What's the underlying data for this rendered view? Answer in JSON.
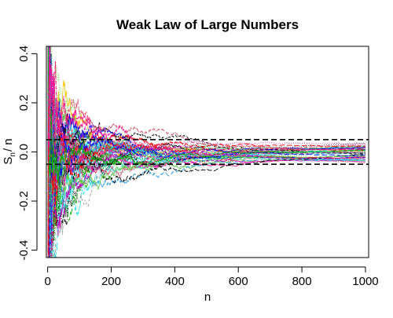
{
  "chart_data": {
    "type": "line",
    "title": "Weak Law of Large Numbers",
    "xlabel": "n",
    "ylabel": {
      "main": "S",
      "subscript": "n",
      "suffix": "/ n"
    },
    "xlim": [
      -4,
      1010
    ],
    "ylim": [
      -0.43,
      0.43
    ],
    "x_ticks": [
      {
        "value": 0,
        "label": "0"
      },
      {
        "value": 200,
        "label": "200"
      },
      {
        "value": 400,
        "label": "400"
      },
      {
        "value": 600,
        "label": "600"
      },
      {
        "value": 800,
        "label": "800"
      },
      {
        "value": 1000,
        "label": "1000"
      }
    ],
    "y_ticks": [
      {
        "value": -0.4,
        "label": "-0.4"
      },
      {
        "value": -0.2,
        "label": "-0.2"
      },
      {
        "value": 0.0,
        "label": "0.0"
      },
      {
        "value": 0.2,
        "label": "0.2"
      },
      {
        "value": 0.4,
        "label": "0.4"
      }
    ],
    "reference_lines": [
      {
        "y": 0.05,
        "style": "dashed",
        "color": "#000000"
      },
      {
        "y": -0.05,
        "style": "dashed",
        "color": "#000000"
      }
    ],
    "n_steps": 1000,
    "grid": false,
    "legend": "none",
    "series": [
      {
        "color": "#000000",
        "dash": "solid",
        "y_end": 0.01
      },
      {
        "color": "#df536b",
        "dash": "dashed",
        "y_end": 0.03
      },
      {
        "color": "#61d04f",
        "dash": "dotted",
        "y_end": -0.05
      },
      {
        "color": "#2297e6",
        "dash": "dotdash",
        "y_end": 0.0
      },
      {
        "color": "#28e2e5",
        "dash": "longdash",
        "y_end": 0.02
      },
      {
        "color": "#cd0bbc",
        "dash": "twodash",
        "y_end": -0.02
      },
      {
        "color": "#f5c710",
        "dash": "solid",
        "y_end": 0.01
      },
      {
        "color": "#9e9e9e",
        "dash": "dashed",
        "y_end": -0.01
      },
      {
        "color": "#000000",
        "dash": "dotted",
        "y_end": 0.04
      },
      {
        "color": "#df536b",
        "dash": "dotdash",
        "y_end": -0.03
      },
      {
        "color": "#61d04f",
        "dash": "solid",
        "y_end": -0.03
      },
      {
        "color": "#2297e6",
        "dash": "dashed",
        "y_end": 0.02
      },
      {
        "color": "#28e2e5",
        "dash": "dotted",
        "y_end": -0.01
      },
      {
        "color": "#cd0bbc",
        "dash": "longdash",
        "y_end": 0.01
      },
      {
        "color": "#ff0000",
        "dash": "solid",
        "y_end": -0.02
      },
      {
        "color": "#0000ff",
        "dash": "dotted",
        "y_end": 0.0
      },
      {
        "color": "#00aa00",
        "dash": "dashed",
        "y_end": 0.03
      },
      {
        "color": "#ff1493",
        "dash": "solid",
        "y_end": -0.01
      },
      {
        "color": "#000000",
        "dash": "dashed",
        "y_end": -0.02
      },
      {
        "color": "#df536b",
        "dash": "solid",
        "y_end": 0.02
      },
      {
        "color": "#61d04f",
        "dash": "dotdash",
        "y_end": 0.01
      },
      {
        "color": "#2297e6",
        "dash": "solid",
        "y_end": -0.03
      },
      {
        "color": "#28e2e5",
        "dash": "dashed",
        "y_end": 0.0
      },
      {
        "color": "#cd0bbc",
        "dash": "dotted",
        "y_end": 0.03
      },
      {
        "color": "#ff0000",
        "dash": "dotted",
        "y_end": -0.04
      },
      {
        "color": "#0000ff",
        "dash": "solid",
        "y_end": 0.02
      },
      {
        "color": "#00aa00",
        "dash": "longdash",
        "y_end": -0.01
      },
      {
        "color": "#ff1493",
        "dash": "dotted",
        "y_end": 0.04
      },
      {
        "color": "#000000",
        "dash": "dotdash",
        "y_end": -0.01
      },
      {
        "color": "#df536b",
        "dash": "dotted",
        "y_end": 0.0
      },
      {
        "color": "#61d04f",
        "dash": "dashed",
        "y_end": 0.02
      },
      {
        "color": "#2297e6",
        "dash": "longdash",
        "y_end": -0.02
      },
      {
        "color": "#28e2e5",
        "dash": "solid",
        "y_end": 0.01
      },
      {
        "color": "#cd0bbc",
        "dash": "solid",
        "y_end": -0.04
      },
      {
        "color": "#ff0000",
        "dash": "dashed",
        "y_end": 0.01
      },
      {
        "color": "#0000ff",
        "dash": "dashed",
        "y_end": -0.02
      },
      {
        "color": "#00aa00",
        "dash": "dotted",
        "y_end": 0.0
      },
      {
        "color": "#ff1493",
        "dash": "dashed",
        "y_end": 0.02
      },
      {
        "color": "#000000",
        "dash": "longdash",
        "y_end": 0.0
      },
      {
        "color": "#df536b",
        "dash": "longdash",
        "y_end": -0.01
      },
      {
        "color": "#61d04f",
        "dash": "solid",
        "y_end": -0.015
      },
      {
        "color": "#2297e6",
        "dash": "dotted",
        "y_end": 0.03
      },
      {
        "color": "#28e2e5",
        "dash": "dotdash",
        "y_end": -0.03
      },
      {
        "color": "#cd0bbc",
        "dash": "dashed",
        "y_end": 0.0
      },
      {
        "color": "#ff0000",
        "dash": "longdash",
        "y_end": 0.02
      },
      {
        "color": "#0000ff",
        "dash": "longdash",
        "y_end": -0.01
      },
      {
        "color": "#00aa00",
        "dash": "solid",
        "y_end": 0.01
      },
      {
        "color": "#ff1493",
        "dash": "longdash",
        "y_end": -0.02
      }
    ]
  }
}
